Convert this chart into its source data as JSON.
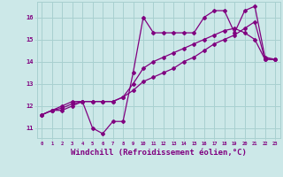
{
  "background_color": "#cce8e8",
  "grid_color": "#a8d0d0",
  "line_color": "#800080",
  "xlabel": "Windchill (Refroidissement éolien,°C)",
  "xlabel_fontsize": 6.5,
  "xtick_labels": [
    "0",
    "1",
    "2",
    "3",
    "4",
    "5",
    "6",
    "7",
    "8",
    "9",
    "10",
    "11",
    "12",
    "13",
    "14",
    "15",
    "16",
    "17",
    "18",
    "19",
    "20",
    "21",
    "22",
    "23"
  ],
  "ytick_labels": [
    "11",
    "12",
    "13",
    "14",
    "15",
    "16"
  ],
  "ytick_vals": [
    11,
    12,
    13,
    14,
    15,
    16
  ],
  "ylim": [
    10.55,
    16.7
  ],
  "xlim": [
    -0.5,
    23.5
  ],
  "series1_x": [
    0,
    1,
    2,
    3,
    4,
    5,
    6,
    7,
    8,
    9,
    10,
    11,
    12,
    13,
    14,
    15,
    16,
    17,
    18,
    19,
    20,
    21,
    22,
    23
  ],
  "series1_y": [
    11.6,
    11.8,
    11.8,
    12.0,
    12.2,
    11.0,
    10.75,
    11.3,
    11.3,
    13.5,
    16.0,
    15.3,
    15.3,
    15.3,
    15.3,
    15.3,
    16.0,
    16.3,
    16.3,
    15.3,
    16.3,
    16.5,
    14.2,
    14.1
  ],
  "series2_x": [
    0,
    1,
    2,
    3,
    4,
    5,
    6,
    7,
    8,
    9,
    10,
    11,
    12,
    13,
    14,
    15,
    16,
    17,
    18,
    19,
    20,
    21,
    22,
    23
  ],
  "series2_y": [
    11.6,
    11.8,
    11.9,
    12.1,
    12.2,
    12.2,
    12.2,
    12.2,
    12.4,
    12.7,
    13.1,
    13.3,
    13.5,
    13.7,
    14.0,
    14.2,
    14.5,
    14.8,
    15.0,
    15.2,
    15.5,
    15.8,
    14.1,
    14.1
  ],
  "series3_x": [
    0,
    1,
    2,
    3,
    4,
    5,
    6,
    7,
    8,
    9,
    10,
    11,
    12,
    13,
    14,
    15,
    16,
    17,
    18,
    19,
    20,
    21,
    22,
    23
  ],
  "series3_y": [
    11.6,
    11.8,
    12.0,
    12.2,
    12.2,
    12.2,
    12.2,
    12.2,
    12.4,
    13.0,
    13.7,
    14.0,
    14.2,
    14.4,
    14.6,
    14.8,
    15.0,
    15.2,
    15.4,
    15.5,
    15.3,
    15.0,
    14.1,
    14.1
  ],
  "marker": "D",
  "markersize": 2.0,
  "linewidth": 0.9
}
